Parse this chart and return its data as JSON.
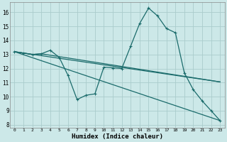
{
  "title": "",
  "xlabel": "Humidex (Indice chaleur)",
  "xlim": [
    -0.5,
    23.5
  ],
  "ylim": [
    7.8,
    16.7
  ],
  "yticks": [
    8,
    9,
    10,
    11,
    12,
    13,
    14,
    15,
    16
  ],
  "xticks": [
    0,
    1,
    2,
    3,
    4,
    5,
    6,
    7,
    8,
    9,
    10,
    11,
    12,
    13,
    14,
    15,
    16,
    17,
    18,
    19,
    20,
    21,
    22,
    23
  ],
  "bg_color": "#cce8e8",
  "grid_color": "#aacccc",
  "line_color": "#1a6b6b",
  "line1_x": [
    0,
    1,
    2,
    3,
    4,
    5,
    6,
    7,
    8,
    9,
    10,
    11,
    12,
    13,
    14,
    15,
    16,
    17,
    18,
    19,
    20,
    21,
    22,
    23
  ],
  "line1_y": [
    13.2,
    13.1,
    13.0,
    13.05,
    13.3,
    12.8,
    11.5,
    9.8,
    10.1,
    10.2,
    12.1,
    12.05,
    12.0,
    13.6,
    15.2,
    16.3,
    15.75,
    14.85,
    14.55,
    11.7,
    10.5,
    9.7,
    9.0,
    8.3
  ],
  "line2_x": [
    0,
    1,
    2,
    3,
    4,
    5,
    6,
    7,
    8,
    9,
    10,
    11,
    12,
    13,
    14,
    15,
    16,
    17,
    18,
    19,
    20,
    21,
    22,
    23
  ],
  "line2_y": [
    13.2,
    13.1,
    13.0,
    13.05,
    12.95,
    12.85,
    12.75,
    12.65,
    12.55,
    12.45,
    12.35,
    12.25,
    12.15,
    12.05,
    11.95,
    11.85,
    11.75,
    11.65,
    11.55,
    11.45,
    11.35,
    11.25,
    11.15,
    11.05
  ],
  "line3_x": [
    0,
    23
  ],
  "line3_y": [
    13.2,
    8.3
  ],
  "line4_x": [
    0,
    23
  ],
  "line4_y": [
    13.2,
    11.05
  ]
}
